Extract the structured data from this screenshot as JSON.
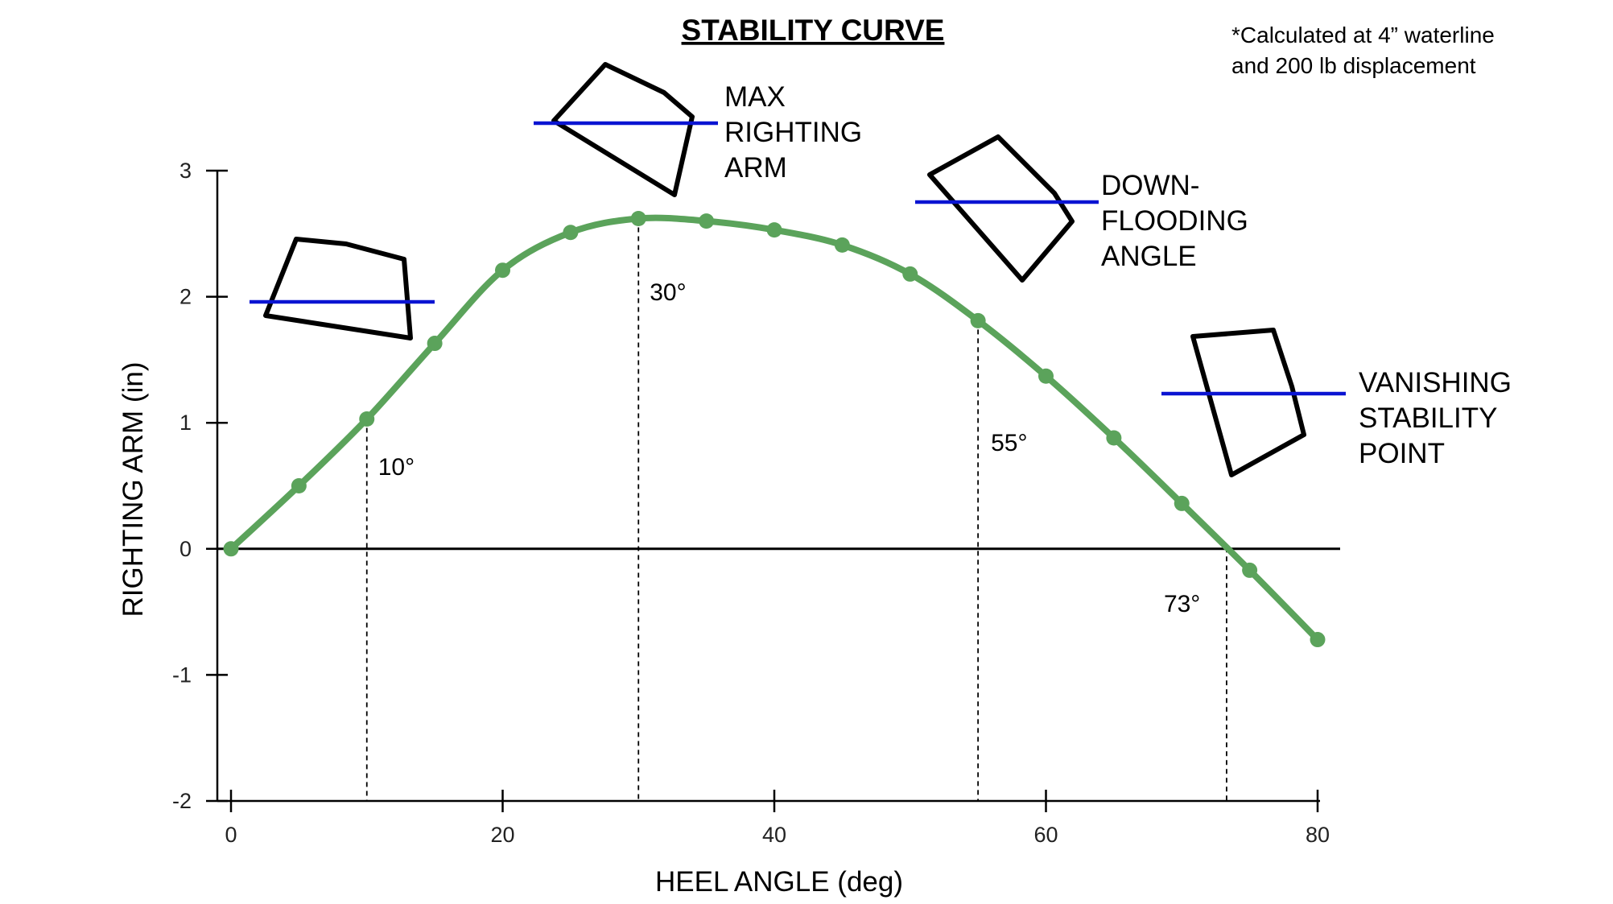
{
  "chart_data": {
    "type": "line",
    "title": "STABILITY CURVE",
    "note": [
      "*Calculated at 4” waterline",
      "and 200 lb displacement"
    ],
    "xlabel": "HEEL ANGLE (deg)",
    "ylabel": "RIGHTING ARM (in)",
    "xlim": [
      0,
      80
    ],
    "ylim": [
      -2,
      3
    ],
    "xticks": [
      0,
      20,
      40,
      60,
      80
    ],
    "yticks": [
      -2,
      -1,
      0,
      1,
      2,
      3
    ],
    "grid": false,
    "series": [
      {
        "x": [
          0,
          5,
          10,
          15,
          20,
          25,
          30,
          35,
          40,
          45,
          50,
          55,
          60,
          65,
          70,
          75,
          80
        ],
        "values": [
          0,
          0.5,
          1.03,
          1.63,
          2.21,
          2.51,
          2.62,
          2.6,
          2.53,
          2.41,
          2.18,
          1.81,
          1.37,
          0.88,
          0.36,
          -0.17,
          -0.72
        ],
        "color": "#5ba35b"
      }
    ],
    "reference_lines": [
      {
        "x": 10,
        "label": "10°"
      },
      {
        "x": 30,
        "label": "30°"
      },
      {
        "x": 55,
        "label": "55°"
      },
      {
        "x": 73.3,
        "label": "73°"
      }
    ],
    "callouts": [
      {
        "lines": []
      },
      {
        "lines": [
          "MAX",
          "RIGHTING",
          "ARM"
        ]
      },
      {
        "lines": [
          "DOWN-",
          "FLOODING",
          "ANGLE"
        ]
      },
      {
        "lines": [
          "VANISHING",
          "STABILITY",
          "POINT"
        ]
      }
    ],
    "colors": {
      "curve": "#5ba35b",
      "waterline": "#0a14d2",
      "hull": "#000000"
    }
  }
}
